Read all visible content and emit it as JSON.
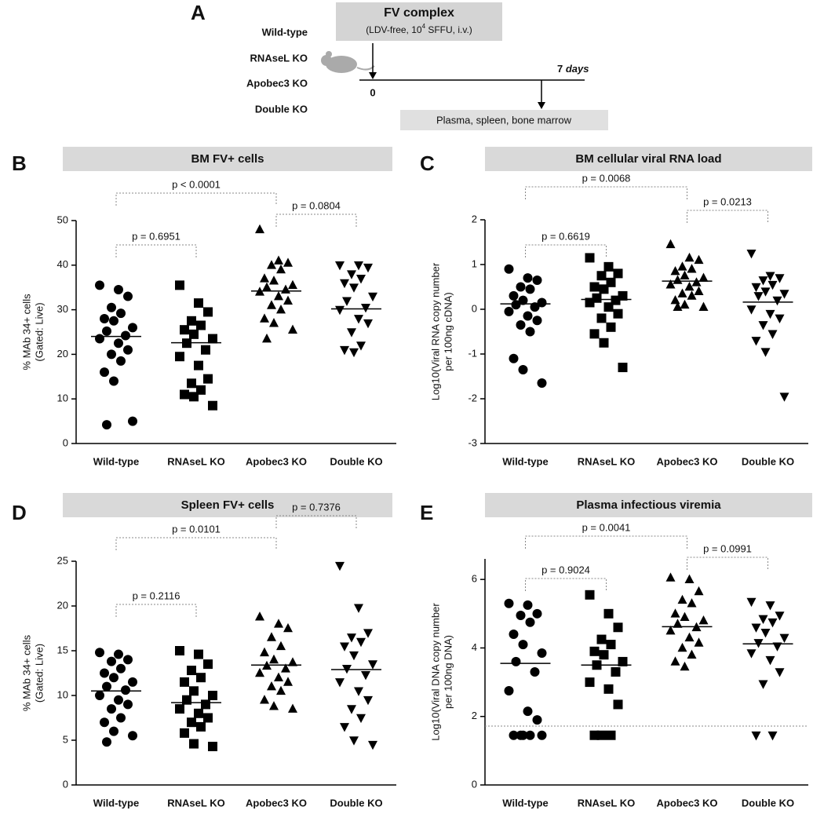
{
  "panel_a": {
    "label": "A",
    "box_title": "FV complex",
    "box_subtitle": [
      "(LDV-free, 10",
      "4",
      " SFFU, i.v.)"
    ],
    "groups": [
      "Wild-type",
      "RNAseL KO",
      "Apobec3 KO",
      "Double KO"
    ],
    "start": "0",
    "end": [
      "7",
      "days"
    ],
    "outcome": "Plasma, spleen, bone marrow"
  },
  "chart_data": [
    {
      "type": "strip",
      "label": "B",
      "title": "BM FV+ cells",
      "ylabel": [
        "% MAb 34+ cells",
        "(Gated: Live)"
      ],
      "categories": [
        "Wild-type",
        "RNAseL KO",
        "Apobec3 KO",
        "Double KO"
      ],
      "markers": [
        "circle",
        "square",
        "triangle-up",
        "triangle-down"
      ],
      "color": "#000000",
      "values": [
        [
          35.5,
          34.5,
          33,
          30.5,
          29.2,
          28,
          27.5,
          26,
          25.2,
          24.2,
          23.5,
          22.5,
          21,
          20,
          18.5,
          16,
          14,
          5,
          4.2
        ],
        [
          35.5,
          31.5,
          29.5,
          27.5,
          26.5,
          25.5,
          24.5,
          23.5,
          22.5,
          21,
          19.5,
          17.5,
          14.5,
          13.5,
          12,
          11,
          10.5,
          8.5
        ],
        [
          48,
          41,
          40.5,
          40,
          39,
          37,
          36.5,
          35.5,
          35,
          34.5,
          34,
          33,
          32,
          31,
          30,
          28,
          27,
          25.5,
          23.5
        ],
        [
          40,
          40,
          39.5,
          38,
          37,
          36,
          35,
          33,
          32,
          30.5,
          30,
          28,
          27,
          25,
          22,
          21,
          20.5
        ]
      ],
      "medians": [
        24,
        22.6,
        34.2,
        30.2
      ],
      "comparisons": [
        "p = 0.6951",
        "p < 0.0001",
        "p = 0.0804"
      ],
      "ylim": [
        0,
        50
      ],
      "yticks": [
        0,
        10,
        20,
        30,
        40,
        50
      ]
    },
    {
      "type": "strip",
      "label": "C",
      "title": "BM cellular viral RNA load",
      "ylabel": [
        "Log10(Viral RNA copy number",
        "per 100ng cDNA)"
      ],
      "categories": [
        "Wild-type",
        "RNAseL KO",
        "Apobec3 KO",
        "Double KO"
      ],
      "markers": [
        "circle",
        "square",
        "triangle-up",
        "triangle-down"
      ],
      "color": "#000000",
      "values": [
        [
          0.9,
          0.7,
          0.65,
          0.5,
          0.45,
          0.3,
          0.2,
          0.15,
          0.1,
          0.05,
          -0.05,
          -0.15,
          -0.25,
          -0.35,
          -0.5,
          -1.1,
          -1.35,
          -1.65
        ],
        [
          1.15,
          0.95,
          0.8,
          0.75,
          0.6,
          0.5,
          0.45,
          0.3,
          0.25,
          0.2,
          0.15,
          0.05,
          -0.1,
          -0.2,
          -0.4,
          -0.55,
          -0.75,
          -1.3
        ],
        [
          1.45,
          1.15,
          1.1,
          0.95,
          0.9,
          0.85,
          0.75,
          0.7,
          0.65,
          0.6,
          0.55,
          0.5,
          0.4,
          0.35,
          0.3,
          0.2,
          0.1,
          0.05,
          0.05
        ],
        [
          1.25,
          0.75,
          0.7,
          0.65,
          0.55,
          0.5,
          0.4,
          0.35,
          0.3,
          0.2,
          0,
          -0.1,
          -0.2,
          -0.35,
          -0.55,
          -0.7,
          -0.95,
          -1.95
        ]
      ],
      "medians": [
        0.12,
        0.22,
        0.63,
        0.16
      ],
      "comparisons": [
        "p = 0.6619",
        "p = 0.0068",
        "p = 0.0213"
      ],
      "ylim": [
        -3,
        2
      ],
      "yticks": [
        -3,
        -2,
        -1,
        0,
        1,
        2
      ]
    },
    {
      "type": "strip",
      "label": "D",
      "title": "Spleen FV+ cells",
      "ylabel": [
        "% MAb 34+ cells",
        "(Gated: Live)"
      ],
      "categories": [
        "Wild-type",
        "RNAseL KO",
        "Apobec3 KO",
        "Double KO"
      ],
      "markers": [
        "circle",
        "square",
        "triangle-up",
        "triangle-down"
      ],
      "color": "#000000",
      "values": [
        [
          14.8,
          14.6,
          14,
          13.8,
          13,
          12.5,
          12,
          11.5,
          11,
          10.6,
          10,
          9.5,
          9,
          8.5,
          7.5,
          7,
          6,
          5.5,
          4.8
        ],
        [
          15,
          14.6,
          13.5,
          12.8,
          12,
          11.5,
          10.5,
          10,
          9.5,
          9,
          8.5,
          8,
          7.5,
          7,
          6.5,
          5.8,
          4.6,
          4.3
        ],
        [
          18.8,
          18,
          17.5,
          16.5,
          15.5,
          14.8,
          14,
          13.7,
          13.3,
          13,
          12.5,
          12,
          11.5,
          11,
          10.5,
          9.5,
          8.8,
          8.5
        ],
        [
          24.5,
          19.8,
          17,
          16.5,
          16,
          15.5,
          14.5,
          13.5,
          13,
          12.3,
          11.5,
          10.5,
          9.5,
          8.5,
          7.5,
          6.5,
          5,
          4.5
        ]
      ],
      "medians": [
        10.5,
        9.2,
        13.4,
        12.9
      ],
      "comparisons": [
        "p = 0.2116",
        "p = 0.0101",
        "p = 0.7376"
      ],
      "ylim": [
        0,
        25
      ],
      "yticks": [
        0,
        5,
        10,
        15,
        20,
        25
      ]
    },
    {
      "type": "strip",
      "label": "E",
      "title": "Plasma infectious viremia",
      "ylabel": [
        "Log10(Viral DNA copy number",
        "per 100ng DNA)"
      ],
      "categories": [
        "Wild-type",
        "RNAseL KO",
        "Apobec3 KO",
        "Double KO"
      ],
      "markers": [
        "circle",
        "square",
        "triangle-up",
        "triangle-down"
      ],
      "color": "#000000",
      "values": [
        [
          5.3,
          5.25,
          5,
          4.95,
          4.75,
          4.4,
          4.1,
          3.85,
          3.6,
          3.3,
          2.75,
          2.15,
          1.9,
          1.45,
          1.45,
          1.45,
          1.45,
          1.45
        ],
        [
          5.55,
          5,
          4.6,
          4.25,
          4.1,
          3.9,
          3.8,
          3.6,
          3.5,
          3.3,
          3,
          2.8,
          2.35,
          1.45,
          1.45,
          1.45
        ],
        [
          6.05,
          6,
          5.65,
          5.4,
          5.3,
          5,
          4.9,
          4.8,
          4.7,
          4.6,
          4.5,
          4.3,
          4.15,
          4,
          3.8,
          3.6,
          3.45
        ],
        [
          5.35,
          5.25,
          4.95,
          4.85,
          4.75,
          4.6,
          4.45,
          4.3,
          4.15,
          4.05,
          3.85,
          3.65,
          3.3,
          2.95,
          1.45,
          1.45
        ]
      ],
      "medians": [
        3.55,
        3.5,
        4.62,
        4.12
      ],
      "reference_line": 1.72,
      "comparisons": [
        "p = 0.9024",
        "p = 0.0041",
        "p = 0.0991"
      ],
      "ylim": [
        0,
        6.6
      ],
      "yticks": [
        0,
        2,
        4,
        6
      ]
    }
  ]
}
